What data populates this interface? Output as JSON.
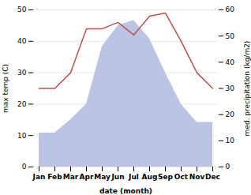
{
  "chart_data": {
    "type": "line",
    "categories": [
      "Jan",
      "Feb",
      "Mar",
      "Apr",
      "May",
      "Jun",
      "Jul",
      "Aug",
      "Sep",
      "Oct",
      "Nov",
      "Dec"
    ],
    "series": [
      {
        "type": "area",
        "axis": "y2",
        "color": "#bcc4e4",
        "values": [
          13,
          13,
          18,
          24,
          46,
          54,
          56,
          49,
          36,
          24,
          17,
          17
        ]
      },
      {
        "type": "line",
        "color": "#c0504d",
        "values": [
          25,
          25,
          30,
          44,
          44,
          46,
          42,
          48,
          49,
          40,
          30,
          25
        ]
      }
    ],
    "xlabel": "date (month)",
    "ylabel": "max temp (C)",
    "y2label": "med. precipitation (kg/m2)",
    "ylim": [
      0,
      50
    ],
    "yticks": [
      0,
      10,
      20,
      30,
      40,
      50
    ],
    "y2lim": [
      0,
      60
    ],
    "y2ticks": [
      0,
      10,
      20,
      30,
      40,
      50,
      60
    ],
    "grid": true
  }
}
